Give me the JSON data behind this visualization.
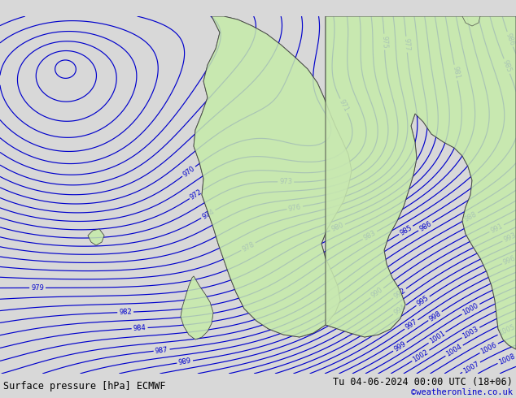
{
  "title_left": "Surface pressure [hPa] ECMWF",
  "title_right": "Tu 04-06-2024 00:00 UTC (18+06)",
  "attribution": "©weatheronline.co.uk",
  "bg_color_ocean": "#d8d8d8",
  "bg_color_land": "#c8e8b0",
  "isobar_color_blue": "#0000cc",
  "isobar_color_black": "#000000",
  "isobar_color_red": "#cc0000",
  "bottom_bar_color": "#b8b8b8",
  "bottom_text_color": "#000000",
  "attribution_color": "#0000cc",
  "fig_width": 6.34,
  "fig_height": 4.9,
  "dpi": 100
}
